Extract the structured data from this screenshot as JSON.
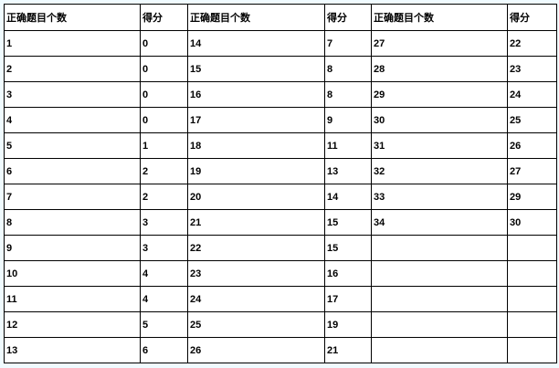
{
  "table": {
    "headers": [
      "正确题目个数",
      "得分",
      "正确题目个数",
      "得分",
      "正确题目个数",
      "得分"
    ],
    "rows": [
      [
        "1",
        "0",
        "14",
        "7",
        "27",
        "22"
      ],
      [
        "2",
        "0",
        "15",
        "8",
        "28",
        "23"
      ],
      [
        "3",
        "0",
        "16",
        "8",
        "29",
        "24"
      ],
      [
        "4",
        "0",
        "17",
        "9",
        "30",
        "25"
      ],
      [
        "5",
        "1",
        "18",
        "11",
        "31",
        "26"
      ],
      [
        "6",
        "2",
        "19",
        "13",
        "32",
        "27"
      ],
      [
        "7",
        "2",
        "20",
        "14",
        "33",
        "29"
      ],
      [
        "8",
        "3",
        "21",
        "15",
        "34",
        "30"
      ],
      [
        "9",
        "3",
        "22",
        "15",
        "",
        ""
      ],
      [
        "10",
        "4",
        "23",
        "16",
        "",
        ""
      ],
      [
        "11",
        "4",
        "24",
        "17",
        "",
        ""
      ],
      [
        "12",
        "5",
        "25",
        "19",
        "",
        ""
      ],
      [
        "13",
        "6",
        "26",
        "21",
        "",
        ""
      ]
    ]
  }
}
